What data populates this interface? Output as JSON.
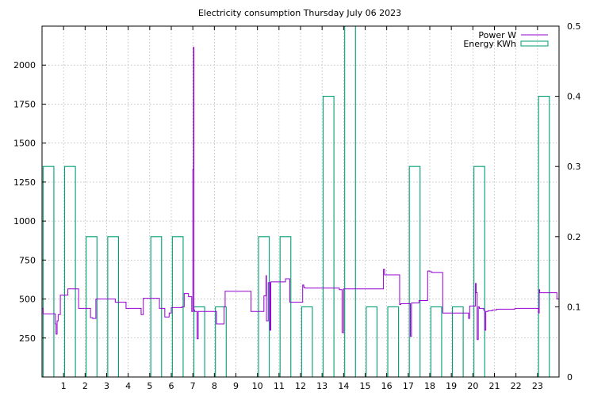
{
  "chart_data": {
    "type": "line",
    "title": "Electricity consumption Thursday July 06 2023",
    "xlabel": "",
    "ylabel": "",
    "x_ticks": [
      "1",
      "2",
      "3",
      "4",
      "5",
      "6",
      "7",
      "8",
      "9",
      "10",
      "11",
      "12",
      "13",
      "14",
      "15",
      "16",
      "17",
      "18",
      "19",
      "20",
      "21",
      "22",
      "23"
    ],
    "y_ticks": [
      "250",
      "500",
      "750",
      "1000",
      "1250",
      "1500",
      "1750",
      "2000"
    ],
    "y2_ticks": [
      "0",
      "0.1",
      "0.2",
      "0.3",
      "0.4",
      "0.5"
    ],
    "xlim": [
      0,
      24
    ],
    "ylim": [
      0,
      2250
    ],
    "y2lim": [
      0,
      0.5
    ],
    "grid": true,
    "legend_position": "top-right",
    "colors": {
      "power": "#9400d3",
      "energy": "#009e73"
    },
    "series": [
      {
        "name": "Power W",
        "axis": "left",
        "style": "steps",
        "x": [
          0,
          0.05,
          0.55,
          0.62,
          0.65,
          0.7,
          0.75,
          0.85,
          1.2,
          1.25,
          1.7,
          1.75,
          2.25,
          2.35,
          2.5,
          2.7,
          3.1,
          3.4,
          3.65,
          3.9,
          4.35,
          4.6,
          4.7,
          5.35,
          5.45,
          5.7,
          5.85,
          5.9,
          6.0,
          6.5,
          6.6,
          6.8,
          6.95,
          7.0,
          7.03,
          7.05,
          7.08,
          7.12,
          7.18,
          7.2,
          7.25,
          7.9,
          7.95,
          8.0,
          8.1,
          8.45,
          8.5,
          8.7,
          8.85,
          9.7,
          9.75,
          10.25,
          10.3,
          10.4,
          10.42,
          10.5,
          10.58,
          10.62,
          10.65,
          10.7,
          11.3,
          11.35,
          11.5,
          11.55,
          12.1,
          12.15,
          12.2,
          12.5,
          13.4,
          13.8,
          13.9,
          13.93,
          14.0,
          15.8,
          15.85,
          15.9,
          16.0,
          16.1,
          16.6,
          16.65,
          17.1,
          17.15,
          17.2,
          17.5,
          17.9,
          18.0,
          18.1,
          18.6,
          18.65,
          18.7,
          19.7,
          19.8,
          19.85,
          20.1,
          20.12,
          20.15,
          20.2,
          20.25,
          20.3,
          20.5,
          20.55,
          20.6,
          20.7,
          20.9,
          21.0,
          21.1,
          21.95,
          22.0,
          23.0,
          23.05,
          23.08,
          23.1,
          23.15,
          23.2,
          23.8,
          23.9,
          24.0
        ],
        "y": [
          440,
          405,
          405,
          340,
          275,
          360,
          400,
          525,
          565,
          565,
          440,
          440,
          380,
          375,
          500,
          500,
          500,
          480,
          480,
          440,
          440,
          400,
          505,
          505,
          440,
          385,
          385,
          410,
          445,
          450,
          535,
          515,
          420,
          1330,
          2115,
          430,
          420,
          420,
          420,
          245,
          420,
          420,
          420,
          420,
          340,
          450,
          550,
          550,
          550,
          420,
          420,
          420,
          520,
          650,
          360,
          605,
          300,
          610,
          610,
          610,
          630,
          630,
          480,
          480,
          590,
          575,
          570,
          570,
          570,
          560,
          560,
          285,
          565,
          565,
          690,
          655,
          655,
          655,
          465,
          470,
          260,
          475,
          475,
          490,
          680,
          675,
          670,
          410,
          410,
          410,
          410,
          375,
          455,
          455,
          600,
          540,
          240,
          450,
          440,
          430,
          300,
          420,
          425,
          430,
          430,
          435,
          440,
          440,
          440,
          410,
          560,
          540,
          540,
          540,
          540,
          500,
          380
        ]
      },
      {
        "name": "Energy KWh",
        "axis": "right",
        "style": "steps-hourly",
        "x": [
          0,
          1,
          2,
          3,
          4,
          5,
          6,
          7,
          8,
          9,
          10,
          11,
          12,
          13,
          14,
          15,
          16,
          17,
          18,
          19,
          20,
          21,
          22,
          23
        ],
        "y": [
          0.3,
          0.3,
          0.2,
          0.2,
          0.0,
          0.2,
          0.2,
          0.1,
          0.1,
          0.0,
          0.2,
          0.2,
          0.1,
          0.4,
          0.5,
          0.1,
          0.1,
          0.3,
          0.1,
          0.1,
          0.3,
          0.0,
          0.0,
          0.4
        ]
      }
    ]
  }
}
